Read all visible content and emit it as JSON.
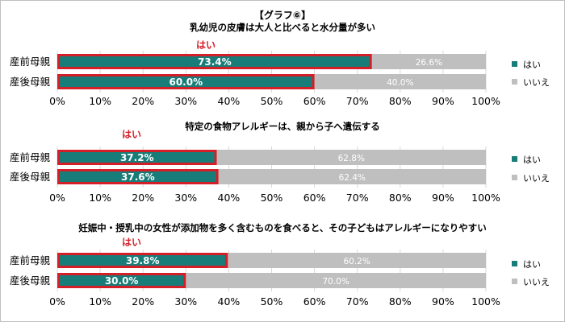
{
  "title": "【グラフ⑥】",
  "colors": {
    "yes": "#187d78",
    "no": "#bfbfbf",
    "highlight": "#d41f28",
    "label_red": "#d41f28"
  },
  "legend": {
    "yes": "はい",
    "no": "いいえ"
  },
  "annotation": "はい",
  "chart_data": [
    {
      "type": "bar",
      "orientation": "horizontal",
      "stacked": true,
      "title": "乳幼児の皮膚は大人と比べると水分量が多い",
      "categories": [
        "産前母親",
        "産後母親"
      ],
      "series": [
        {
          "name": "はい",
          "values": [
            73.4,
            60.0
          ],
          "labels": [
            "73.4%",
            "60.0%"
          ]
        },
        {
          "name": "いいえ",
          "values": [
            26.6,
            40.0
          ],
          "labels": [
            "26.6%",
            "40.0%"
          ]
        }
      ],
      "xlim": [
        0,
        100
      ],
      "xticks": [
        "0%",
        "10%",
        "20%",
        "30%",
        "40%",
        "50%",
        "60%",
        "70%",
        "80%",
        "90%",
        "100%"
      ],
      "legend_position": "right"
    },
    {
      "type": "bar",
      "orientation": "horizontal",
      "stacked": true,
      "title": "特定の食物アレルギーは、親から子へ遺伝する",
      "categories": [
        "産前母親",
        "産後母親"
      ],
      "series": [
        {
          "name": "はい",
          "values": [
            37.2,
            37.6
          ],
          "labels": [
            "37.2%",
            "37.6%"
          ]
        },
        {
          "name": "いいえ",
          "values": [
            62.8,
            62.4
          ],
          "labels": [
            "62.8%",
            "62.4%"
          ]
        }
      ],
      "xlim": [
        0,
        100
      ],
      "xticks": [
        "0%",
        "10%",
        "20%",
        "30%",
        "40%",
        "50%",
        "60%",
        "70%",
        "80%",
        "90%",
        "100%"
      ],
      "legend_position": "right"
    },
    {
      "type": "bar",
      "orientation": "horizontal",
      "stacked": true,
      "title": "妊娠中・授乳中の女性が添加物を多く含むものを食べると、その子どもはアレルギーになりやすい",
      "categories": [
        "産前母親",
        "産後母親"
      ],
      "series": [
        {
          "name": "はい",
          "values": [
            39.8,
            30.0
          ],
          "labels": [
            "39.8%",
            "30.0%"
          ]
        },
        {
          "name": "いいえ",
          "values": [
            60.2,
            70.0
          ],
          "labels": [
            "60.2%",
            "70.0%"
          ]
        }
      ],
      "xlim": [
        0,
        100
      ],
      "xticks": [
        "0%",
        "10%",
        "20%",
        "30%",
        "40%",
        "50%",
        "60%",
        "70%",
        "80%",
        "90%",
        "100%"
      ],
      "legend_position": "right"
    }
  ]
}
